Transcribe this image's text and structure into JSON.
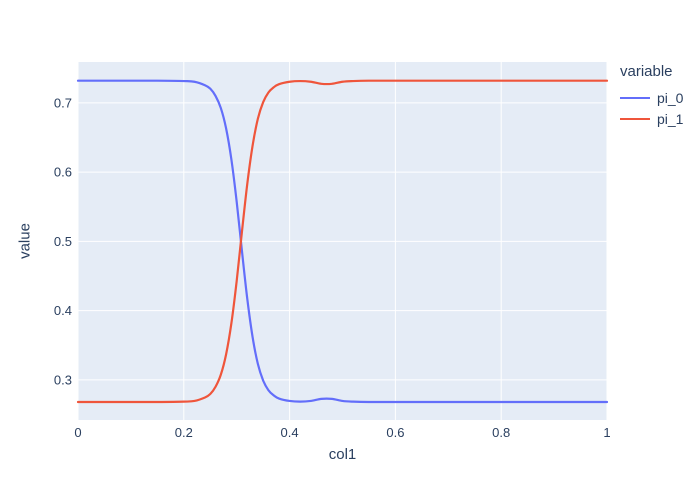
{
  "figure": {
    "background_color": "#ffffff",
    "plot_bgcolor": "#e5ecf6",
    "grid_color": "#ffffff",
    "text_color": "#2a3f5f"
  },
  "chart_data": {
    "type": "line",
    "title": "",
    "xlabel": "col1",
    "ylabel": "value",
    "xlim": [
      0,
      1
    ],
    "ylim": [
      0.242,
      0.759
    ],
    "grid": true,
    "legend": {
      "title": "variable",
      "position": "right-top",
      "entries": [
        "pi_0",
        "pi_1"
      ]
    },
    "x_ticks": [
      0,
      0.2,
      0.4,
      0.6,
      0.8,
      1
    ],
    "x_tick_labels": [
      "0",
      "0.2",
      "0.4",
      "0.6",
      "0.8",
      "1"
    ],
    "y_ticks": [
      0.3,
      0.4,
      0.5,
      0.6,
      0.7
    ],
    "y_tick_labels": [
      "0.3",
      "0.4",
      "0.5",
      "0.6",
      "0.7"
    ],
    "x": [
      0,
      0.05,
      0.1,
      0.15,
      0.2,
      0.22,
      0.24,
      0.25,
      0.26,
      0.27,
      0.28,
      0.29,
      0.3,
      0.31,
      0.32,
      0.33,
      0.34,
      0.35,
      0.36,
      0.37,
      0.38,
      0.4,
      0.42,
      0.44,
      0.46,
      0.48,
      0.5,
      0.52,
      0.55,
      0.6,
      0.65,
      0.7,
      0.75,
      0.8,
      0.85,
      0.9,
      0.95,
      1
    ],
    "series": [
      {
        "name": "pi_0",
        "color": "#636efa",
        "values": [
          0.732,
          0.732,
          0.732,
          0.732,
          0.7315,
          0.7305,
          0.7255,
          0.7205,
          0.71,
          0.6925,
          0.663,
          0.618,
          0.557,
          0.4855,
          0.417,
          0.362,
          0.323,
          0.299,
          0.285,
          0.2775,
          0.273,
          0.2695,
          0.2685,
          0.2695,
          0.2725,
          0.2725,
          0.2695,
          0.2685,
          0.268,
          0.268,
          0.268,
          0.268,
          0.268,
          0.268,
          0.268,
          0.268,
          0.268,
          0.268
        ]
      },
      {
        "name": "pi_1",
        "color": "#ef553b",
        "values": [
          0.268,
          0.268,
          0.268,
          0.268,
          0.2685,
          0.2695,
          0.2745,
          0.2795,
          0.29,
          0.3075,
          0.337,
          0.382,
          0.443,
          0.5145,
          0.583,
          0.638,
          0.677,
          0.701,
          0.715,
          0.7225,
          0.727,
          0.7305,
          0.7315,
          0.7305,
          0.7275,
          0.7275,
          0.7305,
          0.7315,
          0.732,
          0.732,
          0.732,
          0.732,
          0.732,
          0.732,
          0.732,
          0.732,
          0.732,
          0.732
        ]
      }
    ]
  }
}
